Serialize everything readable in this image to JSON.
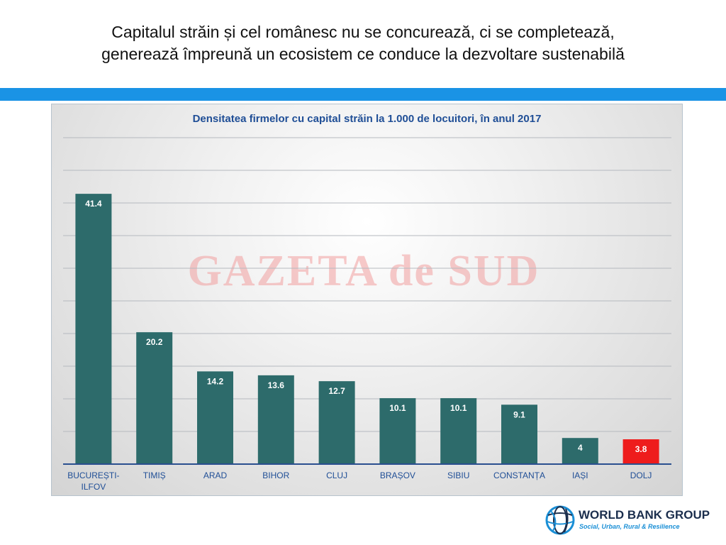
{
  "slide": {
    "title_line1": "Capitalul străin și cel românesc nu se concurează, ci se completează,",
    "title_line2": "generează împreună un ecosistem ce conduce la dezvoltare sustenabilă",
    "accent_color": "#1a93e5"
  },
  "watermark": {
    "text": "GAZETA de SUD",
    "color": "#f2a0a0"
  },
  "logo": {
    "name": "WORLD BANK GROUP",
    "subtitle": "Social, Urban, Rural & Resilience",
    "icon": "globe-icon"
  },
  "chart_data": {
    "type": "bar",
    "title": "Densitatea firmelor cu capital străin la 1.000 de locuitori, în anul 2017",
    "categories": [
      "BUCUREȘTI-ILFOV",
      "TIMIȘ",
      "ARAD",
      "BIHOR",
      "CLUJ",
      "BRAȘOV",
      "SIBIU",
      "CONSTANȚA",
      "IAȘI",
      "DOLJ"
    ],
    "category_label_lines": [
      [
        "BUCUREȘTI-",
        "ILFOV"
      ],
      [
        "TIMIȘ"
      ],
      [
        "ARAD"
      ],
      [
        "BIHOR"
      ],
      [
        "CLUJ"
      ],
      [
        "BRAȘOV"
      ],
      [
        "SIBIU"
      ],
      [
        "CONSTANȚA"
      ],
      [
        "IAȘI"
      ],
      [
        "DOLJ"
      ]
    ],
    "values": [
      41.4,
      20.2,
      14.2,
      13.6,
      12.7,
      10.1,
      10.1,
      9.1,
      4,
      3.8
    ],
    "data_labels": [
      "41.4",
      "20.2",
      "14.2",
      "13.6",
      "12.7",
      "10.1",
      "10.1",
      "9.1",
      "4",
      "3.8"
    ],
    "highlight_category": "DOLJ",
    "bar_color": "#2d6b6b",
    "highlight_color": "#ee1c1c",
    "axis_color": "#2a4f8f",
    "ylim": [
      0,
      50
    ],
    "grid_step": 5,
    "grid": true,
    "xlabel": "",
    "ylabel": ""
  }
}
